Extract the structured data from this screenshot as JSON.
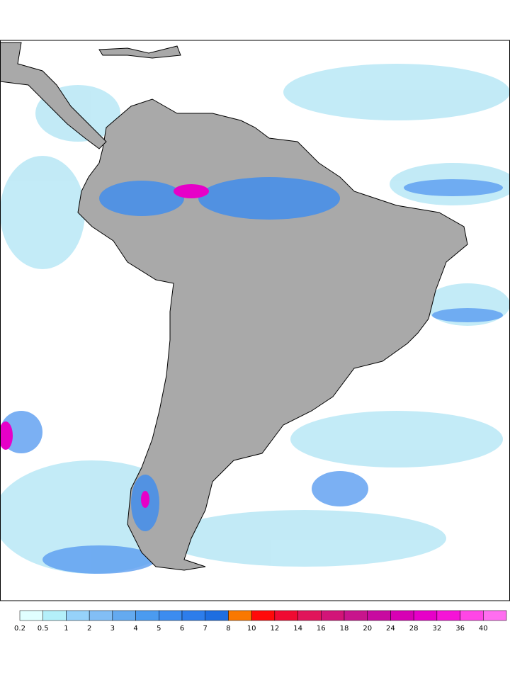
{
  "legend": {
    "labels": [
      0.2,
      0.5,
      1,
      2,
      3,
      4,
      5,
      6,
      7,
      8,
      10,
      12,
      14,
      16,
      18,
      20,
      24,
      28,
      32,
      36,
      40
    ],
    "colors": [
      "#e1ffff",
      "#b4f0fa",
      "#96d2fa",
      "#82bef5",
      "#64aaf0",
      "#4b9bf0",
      "#3c8cf0",
      "#2d7deb",
      "#1e6ee1",
      "#fa7800",
      "#ff0a0a",
      "#f00a32",
      "#e1145a",
      "#d21478",
      "#c8148c",
      "#c80aa0",
      "#d700b4",
      "#e600c8",
      "#f514d7",
      "#ff46e6",
      "#ff6ef0"
    ]
  }
}
